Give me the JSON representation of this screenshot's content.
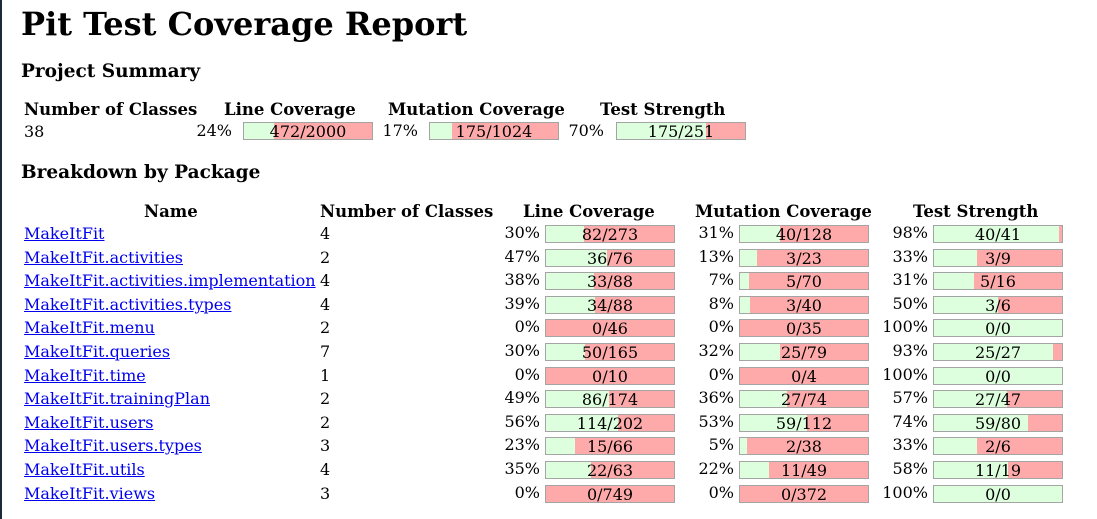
{
  "report": {
    "title": "Pit Test Coverage Report"
  },
  "project_summary": {
    "heading": "Project Summary",
    "headers": {
      "classes": "Number of Classes",
      "line": "Line Coverage",
      "mutation": "Mutation Coverage",
      "strength": "Test Strength"
    },
    "classes": "38",
    "line": {
      "pct": "24%",
      "label": "472/2000",
      "fraction": 0.236
    },
    "mutation": {
      "pct": "17%",
      "label": "175/1024",
      "fraction": 0.171
    },
    "strength": {
      "pct": "70%",
      "label": "175/251",
      "fraction": 0.697
    }
  },
  "breakdown": {
    "heading": "Breakdown by Package",
    "headers": {
      "name": "Name",
      "classes": "Number of Classes",
      "line": "Line Coverage",
      "mutation": "Mutation Coverage",
      "strength": "Test Strength"
    },
    "rows": [
      {
        "name": "MakeItFit",
        "classes": "4",
        "line_pct": "30%",
        "line": "82/273",
        "line_f": 0.3,
        "mut_pct": "31%",
        "mut": "40/128",
        "mut_f": 0.313,
        "str_pct": "98%",
        "str": "40/41",
        "str_f": 0.976
      },
      {
        "name": "MakeItFit.activities",
        "classes": "2",
        "line_pct": "47%",
        "line": "36/76",
        "line_f": 0.474,
        "mut_pct": "13%",
        "mut": "3/23",
        "mut_f": 0.13,
        "str_pct": "33%",
        "str": "3/9",
        "str_f": 0.333
      },
      {
        "name": "MakeItFit.activities.implementation",
        "classes": "4",
        "line_pct": "38%",
        "line": "33/88",
        "line_f": 0.375,
        "mut_pct": "7%",
        "mut": "5/70",
        "mut_f": 0.071,
        "str_pct": "31%",
        "str": "5/16",
        "str_f": 0.313
      },
      {
        "name": "MakeItFit.activities.types",
        "classes": "4",
        "line_pct": "39%",
        "line": "34/88",
        "line_f": 0.386,
        "mut_pct": "8%",
        "mut": "3/40",
        "mut_f": 0.075,
        "str_pct": "50%",
        "str": "3/6",
        "str_f": 0.5
      },
      {
        "name": "MakeItFit.menu",
        "classes": "2",
        "line_pct": "0%",
        "line": "0/46",
        "line_f": 0,
        "mut_pct": "0%",
        "mut": "0/35",
        "mut_f": 0,
        "str_pct": "100%",
        "str": "0/0",
        "str_f": 1
      },
      {
        "name": "MakeItFit.queries",
        "classes": "7",
        "line_pct": "30%",
        "line": "50/165",
        "line_f": 0.303,
        "mut_pct": "32%",
        "mut": "25/79",
        "mut_f": 0.316,
        "str_pct": "93%",
        "str": "25/27",
        "str_f": 0.926
      },
      {
        "name": "MakeItFit.time",
        "classes": "1",
        "line_pct": "0%",
        "line": "0/10",
        "line_f": 0,
        "mut_pct": "0%",
        "mut": "0/4",
        "mut_f": 0,
        "str_pct": "100%",
        "str": "0/0",
        "str_f": 1
      },
      {
        "name": "MakeItFit.trainingPlan",
        "classes": "2",
        "line_pct": "49%",
        "line": "86/174",
        "line_f": 0.494,
        "mut_pct": "36%",
        "mut": "27/74",
        "mut_f": 0.365,
        "str_pct": "57%",
        "str": "27/47",
        "str_f": 0.574
      },
      {
        "name": "MakeItFit.users",
        "classes": "2",
        "line_pct": "56%",
        "line": "114/202",
        "line_f": 0.564,
        "mut_pct": "53%",
        "mut": "59/112",
        "mut_f": 0.527,
        "str_pct": "74%",
        "str": "59/80",
        "str_f": 0.738
      },
      {
        "name": "MakeItFit.users.types",
        "classes": "3",
        "line_pct": "23%",
        "line": "15/66",
        "line_f": 0.227,
        "mut_pct": "5%",
        "mut": "2/38",
        "mut_f": 0.053,
        "str_pct": "33%",
        "str": "2/6",
        "str_f": 0.333
      },
      {
        "name": "MakeItFit.utils",
        "classes": "4",
        "line_pct": "35%",
        "line": "22/63",
        "line_f": 0.349,
        "mut_pct": "22%",
        "mut": "11/49",
        "mut_f": 0.224,
        "str_pct": "58%",
        "str": "11/19",
        "str_f": 0.579
      },
      {
        "name": "MakeItFit.views",
        "classes": "3",
        "line_pct": "0%",
        "line": "0/749",
        "line_f": 0,
        "mut_pct": "0%",
        "mut": "0/372",
        "mut_f": 0,
        "str_pct": "100%",
        "str": "0/0",
        "str_f": 1
      }
    ]
  },
  "colors": {
    "covered": "#ddffdd",
    "uncovered": "#ffaaaa",
    "link": "#0000ee",
    "bar_border": "#a4a4a4"
  }
}
